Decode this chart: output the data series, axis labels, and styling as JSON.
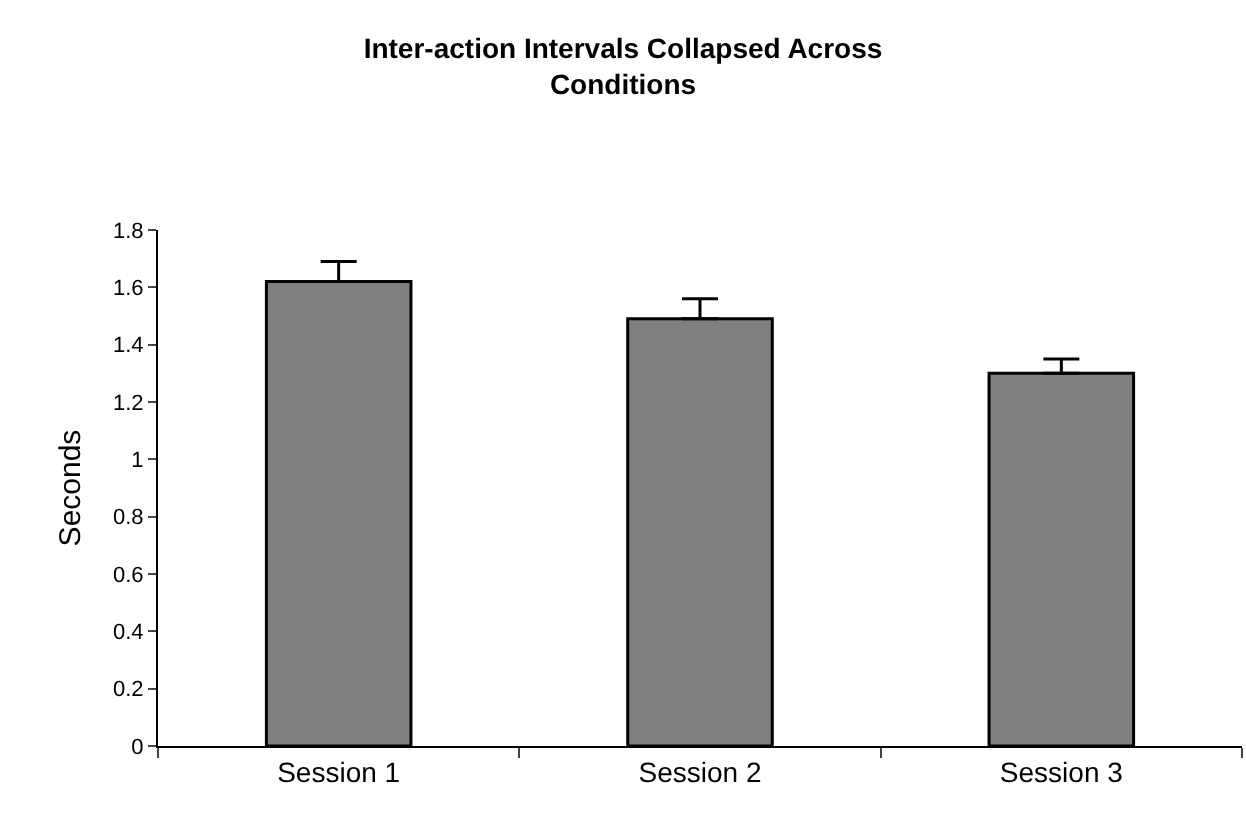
{
  "chart_data": {
    "type": "bar",
    "title": "Inter-action Intervals Collapsed Across\nConditions",
    "ylabel": "Seconds",
    "categories": [
      "Session 1",
      "Session 2",
      "Session 3"
    ],
    "values": [
      1.62,
      1.49,
      1.3
    ],
    "errors": [
      [
        1.62,
        1.69
      ],
      [
        1.49,
        1.56
      ],
      [
        1.3,
        1.35
      ]
    ],
    "color": "#808080",
    "ylim": [
      0,
      1.8
    ],
    "yticks": [
      0,
      {
        "value": 0.2,
        "label": "0.2"
      },
      {
        "value": 0.4,
        "label": "0.4"
      },
      {
        "value": 0.6,
        "label": "0.6"
      },
      {
        "value": 0.8,
        "label": "0.8"
      },
      1,
      {
        "value": 1.2,
        "label": "1.2"
      },
      {
        "value": 1.4,
        "label": "1.4"
      },
      {
        "value": 1.6,
        "label": "1.6"
      },
      {
        "value": 1.8,
        "label": "1.8"
      }
    ],
    "grid": false,
    "legend": false
  }
}
